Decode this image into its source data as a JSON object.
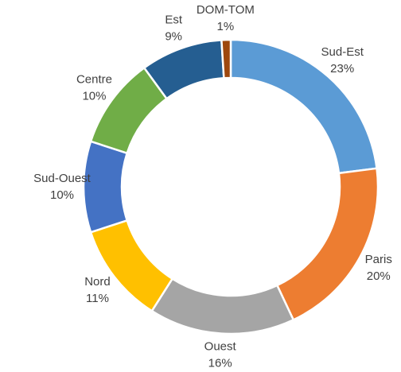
{
  "chart_data": {
    "type": "donut",
    "categories": [
      "Sud-Est",
      "Paris",
      "Ouest",
      "Nord",
      "Sud-Ouest",
      "Centre",
      "Est",
      "DOM-TOM"
    ],
    "values": [
      23,
      20,
      16,
      11,
      10,
      10,
      9,
      1
    ],
    "value_labels": [
      "23%",
      "20%",
      "16%",
      "11%",
      "10%",
      "10%",
      "9%",
      "1%"
    ],
    "colors": [
      "#5b9bd5",
      "#ed7d31",
      "#a5a5a5",
      "#ffc000",
      "#4472c4",
      "#70ad47",
      "#255e91",
      "#9e480e"
    ]
  }
}
